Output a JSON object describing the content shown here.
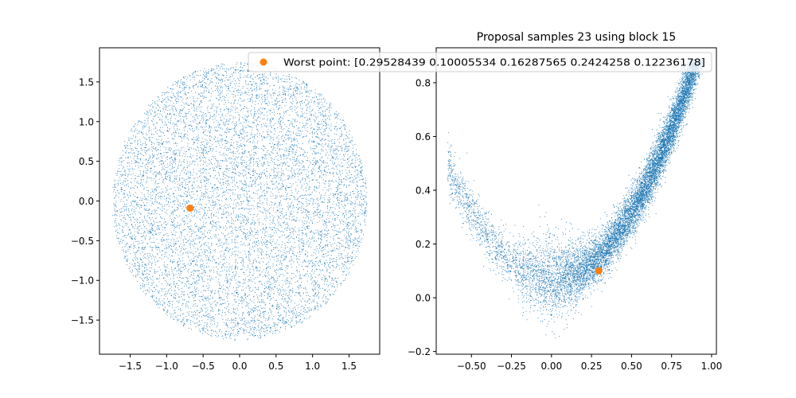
{
  "figure": {
    "title_right": "Proposal samples 23 using block 15",
    "legend_label": "Worst point: [0.29528439 0.10005534 0.16287565 0.2424258  0.12236178]",
    "sample_color": "#1f77b4",
    "highlight_color": "#ff7f0e"
  },
  "chart_data": [
    {
      "type": "scatter",
      "title": "",
      "xlabel": "",
      "ylabel": "",
      "xlim": [
        -1.92,
        1.92
      ],
      "ylim": [
        -1.93,
        1.93
      ],
      "xticks": [
        -1.5,
        -1.0,
        -0.5,
        0.0,
        0.5,
        1.0,
        1.5
      ],
      "xtick_labels": [
        "−1.5",
        "−1.0",
        "−0.5",
        "0.0",
        "0.5",
        "1.0",
        "1.5"
      ],
      "yticks": [
        -1.5,
        -1.0,
        -0.5,
        0.0,
        0.5,
        1.0,
        1.5
      ],
      "ytick_labels": [
        "−1.5",
        "−1.0",
        "−0.5",
        "0.0",
        "0.5",
        "1.0",
        "1.5"
      ],
      "grid": false,
      "series": [
        {
          "kind": "samples",
          "distribution": "uniform disk",
          "center": [
            0.0,
            0.0
          ],
          "radius": 1.75,
          "n_points": 9000
        },
        {
          "name": "Worst point",
          "kind": "highlight",
          "points": [
            [
              -0.68,
              -0.09
            ]
          ]
        }
      ]
    },
    {
      "type": "scatter",
      "title": "Proposal samples 23 using block 15",
      "xlabel": "",
      "ylabel": "",
      "xlim": [
        -0.72,
        1.03
      ],
      "ylim": [
        -0.21,
        0.93
      ],
      "xticks": [
        -0.5,
        -0.25,
        0.0,
        0.25,
        0.5,
        0.75,
        1.0
      ],
      "xtick_labels": [
        "−0.50",
        "−0.25",
        "0.00",
        "0.25",
        "0.50",
        "0.75",
        "1.00"
      ],
      "yticks": [
        -0.2,
        0.0,
        0.2,
        0.4,
        0.6,
        0.8
      ],
      "ytick_labels": [
        "−0.2",
        "0.0",
        "0.2",
        "0.4",
        "0.6",
        "0.8"
      ],
      "grid": false,
      "legend_location": "upper-left",
      "series": [
        {
          "kind": "samples",
          "distribution": "banana curve y ≈ x²",
          "x_range": [
            -0.65,
            0.95
          ],
          "n_points": 11000
        },
        {
          "name": "Worst point",
          "kind": "highlight",
          "points": [
            [
              0.29528439,
              0.10005534
            ]
          ]
        }
      ]
    }
  ]
}
